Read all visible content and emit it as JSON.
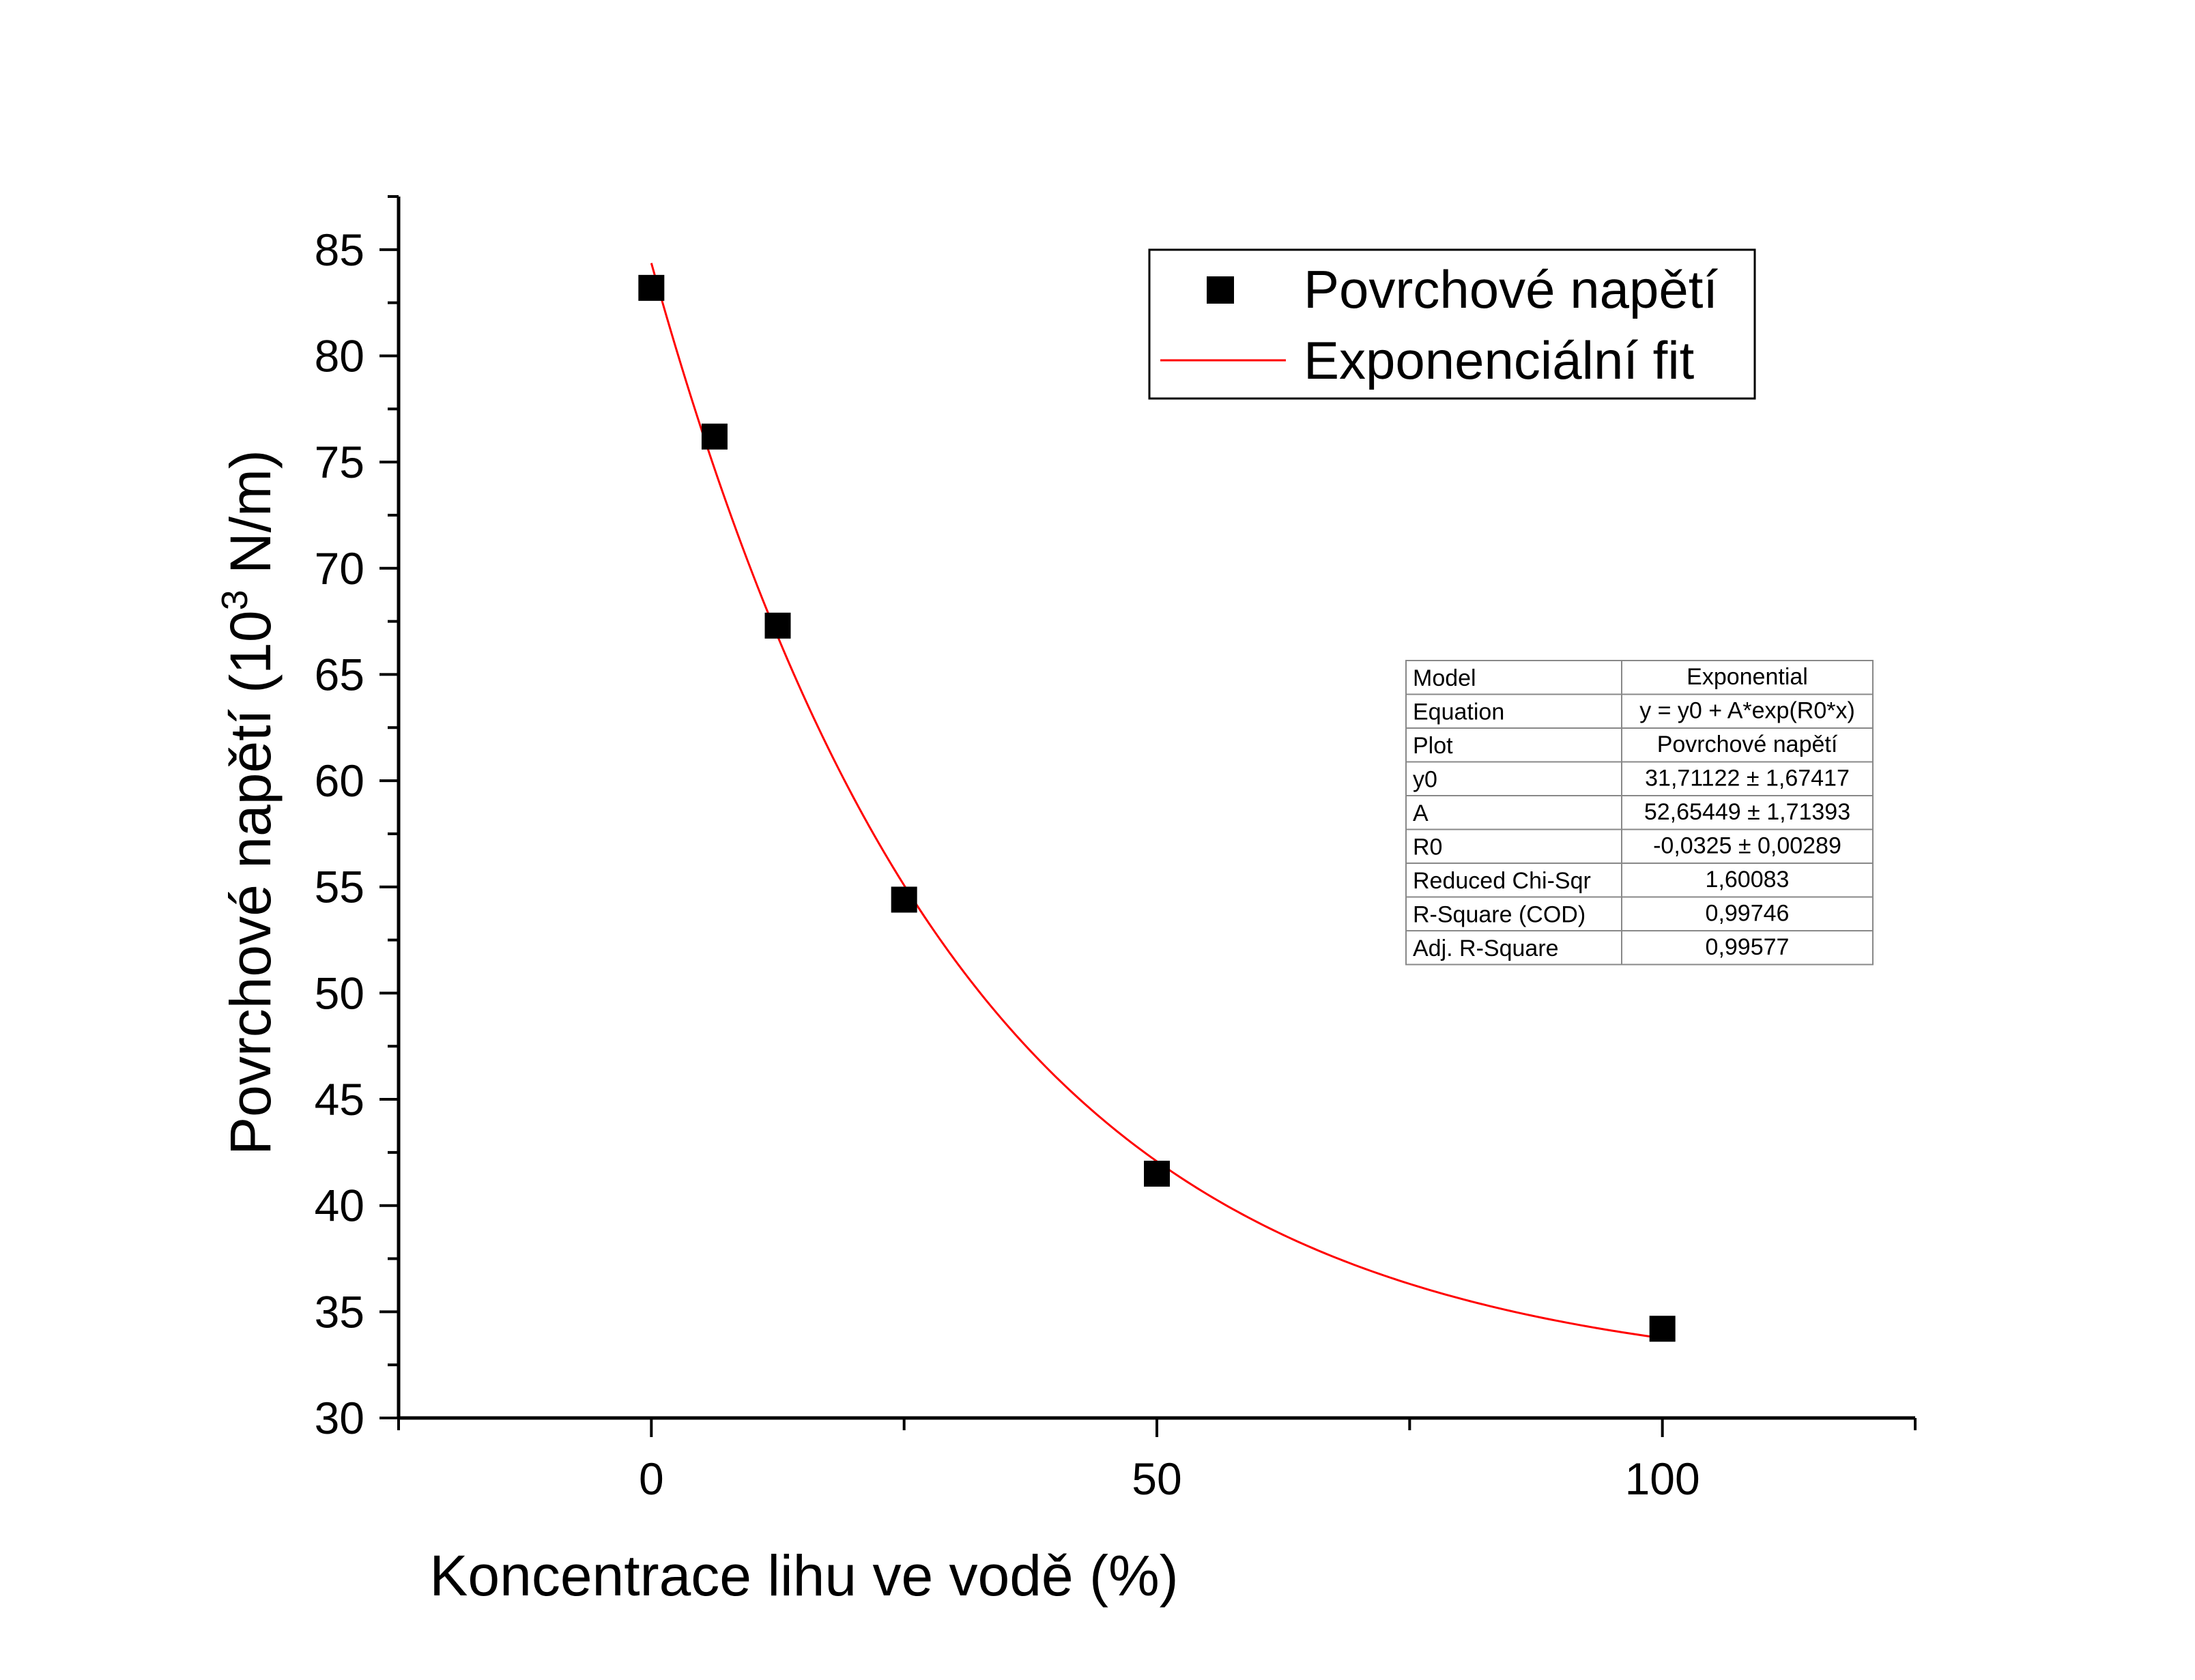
{
  "chart_data": {
    "type": "scatter",
    "xlabel": "Koncentrace lihu ve vodě (%)",
    "ylabel_prefix": "Povrchové napětí (10",
    "ylabel_sup": "3",
    "ylabel_suffix": " N/m)",
    "xlim": [
      -25,
      125
    ],
    "ylim": [
      30,
      87.5
    ],
    "x_ticks": [
      0,
      50,
      100
    ],
    "x_tick_labels": [
      "0",
      "50",
      "100"
    ],
    "y_ticks": [
      30,
      35,
      40,
      45,
      50,
      55,
      60,
      65,
      70,
      75,
      80,
      85
    ],
    "y_tick_labels": [
      "30",
      "35",
      "40",
      "45",
      "50",
      "55",
      "60",
      "65",
      "70",
      "75",
      "80",
      "85"
    ],
    "grid": false,
    "legend_position": "top-right",
    "series": [
      {
        "name": "Povrchové napětí",
        "kind": "scatter",
        "marker": "square",
        "color": "#000000",
        "x": [
          0,
          6.25,
          12.5,
          25,
          50,
          100
        ],
        "y": [
          83.2,
          76.2,
          67.3,
          54.4,
          41.5,
          34.2
        ]
      },
      {
        "name": "Exponenciální fit",
        "kind": "fit-line",
        "color": "#ff0000",
        "model": {
          "y0": 31.71122,
          "A": 52.65449,
          "R0": -0.0325
        },
        "x_range": [
          0,
          100
        ]
      }
    ],
    "fit_table": {
      "rows": [
        [
          "Model",
          "Exponential"
        ],
        [
          "Equation",
          "y = y0 + A*exp(R0*x)"
        ],
        [
          "Plot",
          "Povrchové napětí"
        ],
        [
          "y0",
          "31,71122 ± 1,67417"
        ],
        [
          "A",
          "52,65449 ± 1,71393"
        ],
        [
          "R0",
          "-0,0325 ± 0,00289"
        ],
        [
          "Reduced Chi-Sqr",
          "1,60083"
        ],
        [
          "R-Square (COD)",
          "0,99746"
        ],
        [
          "Adj. R-Square",
          "0,99577"
        ]
      ]
    }
  }
}
